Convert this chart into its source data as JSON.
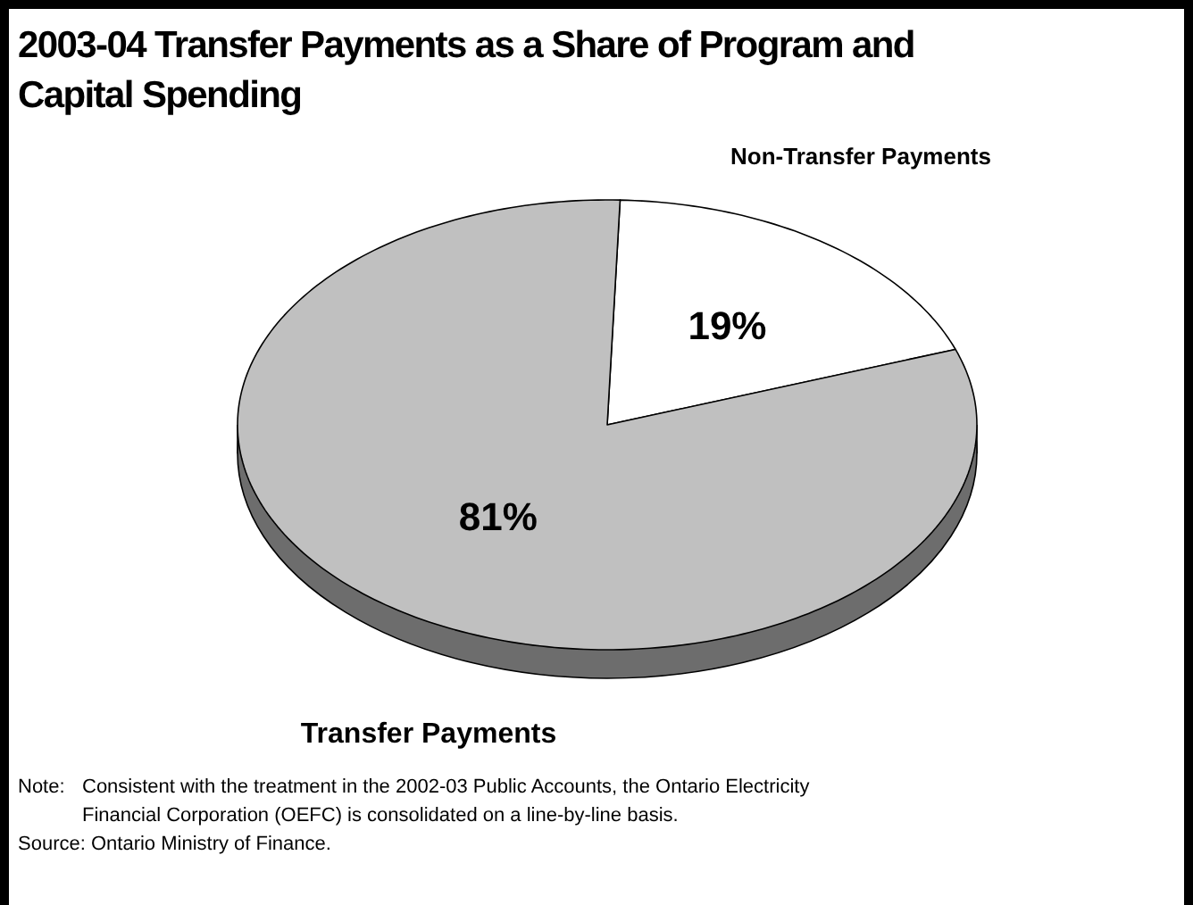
{
  "chart_data": {
    "type": "pie",
    "title": "2003-04 Transfer Payments as a Share of Program and Capital Spending",
    "categories": [
      "Non-Transfer Payments",
      "Transfer Payments"
    ],
    "values": [
      19,
      81
    ],
    "colors": [
      "#ffffff",
      "#c0c0c0"
    ],
    "value_labels": [
      "19%",
      "81%"
    ],
    "legend": false,
    "annotations": [
      "Note: Consistent with the treatment in the 2002-03 Public Accounts, the Ontario Electricity Financial Corporation (OEFC) is consolidated on a line-by-line basis.",
      "Source: Ontario Ministry of Finance."
    ]
  }
}
